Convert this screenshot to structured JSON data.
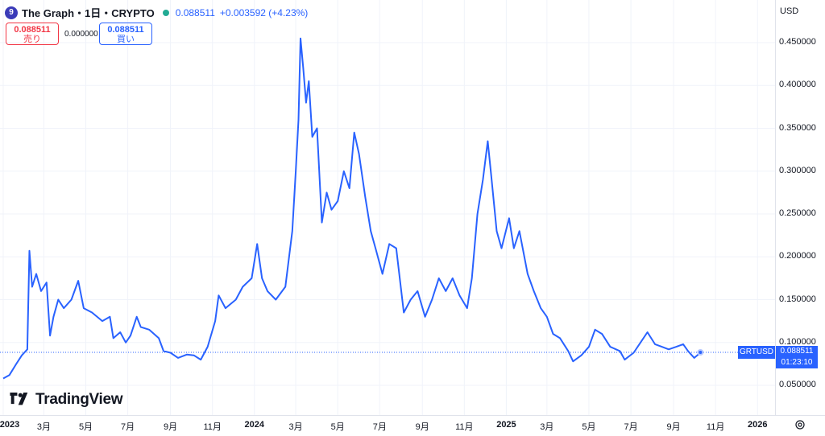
{
  "header": {
    "icon_glyph": "9",
    "title": "The Graph・1日・CRYPTO",
    "last_price": "0.088511",
    "change": "+0.003592 (+4.23%)"
  },
  "trade": {
    "sell_price": "0.088511",
    "sell_label": "売り",
    "spread": "0.000000",
    "buy_price": "0.088511",
    "buy_label": "買い"
  },
  "currency": "USD",
  "logo_text": "TradingView",
  "current": {
    "symbol": "GRTUSD",
    "price": "0.088511",
    "countdown": "01:23:10"
  },
  "colors": {
    "line": "#2962ff",
    "sell": "#f23645",
    "buy": "#2962ff",
    "status_dot": "#22ab94"
  },
  "chart_data": {
    "type": "line",
    "title": "The Graph・1日・CRYPTO",
    "series_name": "GRTUSD",
    "ylim": [
      0.0,
      0.48
    ],
    "y_ticks": [
      "0.050000",
      "0.100000",
      "0.150000",
      "0.200000",
      "0.250000",
      "0.300000",
      "0.350000",
      "0.400000",
      "0.450000"
    ],
    "x_ticks": [
      "2023",
      "3月",
      "5月",
      "7月",
      "9月",
      "11月",
      "2024",
      "3月",
      "5月",
      "7月",
      "9月",
      "11月",
      "2025",
      "3月",
      "5月",
      "7月",
      "9月",
      "11月",
      "2026"
    ],
    "x_tick_years": [
      "2023",
      "2024",
      "2025",
      "2026"
    ],
    "x_range": [
      "2023-01-01",
      "2026-02-10"
    ],
    "grid": true,
    "points": [
      [
        "2023-01-01",
        0.058
      ],
      [
        "2023-01-10",
        0.062
      ],
      [
        "2023-01-20",
        0.075
      ],
      [
        "2023-01-28",
        0.085
      ],
      [
        "2023-02-05",
        0.092
      ],
      [
        "2023-02-08",
        0.207
      ],
      [
        "2023-02-12",
        0.165
      ],
      [
        "2023-02-18",
        0.18
      ],
      [
        "2023-02-25",
        0.16
      ],
      [
        "2023-03-05",
        0.17
      ],
      [
        "2023-03-10",
        0.108
      ],
      [
        "2023-03-15",
        0.13
      ],
      [
        "2023-03-22",
        0.15
      ],
      [
        "2023-03-30",
        0.14
      ],
      [
        "2023-04-10",
        0.15
      ],
      [
        "2023-04-20",
        0.172
      ],
      [
        "2023-04-28",
        0.14
      ],
      [
        "2023-05-10",
        0.135
      ],
      [
        "2023-05-25",
        0.125
      ],
      [
        "2023-06-05",
        0.13
      ],
      [
        "2023-06-10",
        0.105
      ],
      [
        "2023-06-20",
        0.112
      ],
      [
        "2023-06-28",
        0.1
      ],
      [
        "2023-07-05",
        0.108
      ],
      [
        "2023-07-14",
        0.13
      ],
      [
        "2023-07-20",
        0.118
      ],
      [
        "2023-08-01",
        0.115
      ],
      [
        "2023-08-15",
        0.105
      ],
      [
        "2023-08-22",
        0.09
      ],
      [
        "2023-09-01",
        0.088
      ],
      [
        "2023-09-12",
        0.082
      ],
      [
        "2023-09-25",
        0.086
      ],
      [
        "2023-10-05",
        0.085
      ],
      [
        "2023-10-15",
        0.08
      ],
      [
        "2023-10-25",
        0.095
      ],
      [
        "2023-11-05",
        0.125
      ],
      [
        "2023-11-10",
        0.155
      ],
      [
        "2023-11-20",
        0.14
      ],
      [
        "2023-12-05",
        0.15
      ],
      [
        "2023-12-15",
        0.165
      ],
      [
        "2023-12-28",
        0.175
      ],
      [
        "2024-01-05",
        0.215
      ],
      [
        "2024-01-12",
        0.175
      ],
      [
        "2024-01-20",
        0.16
      ],
      [
        "2024-02-01",
        0.15
      ],
      [
        "2024-02-15",
        0.165
      ],
      [
        "2024-02-25",
        0.23
      ],
      [
        "2024-03-01",
        0.3
      ],
      [
        "2024-03-05",
        0.36
      ],
      [
        "2024-03-08",
        0.455
      ],
      [
        "2024-03-12",
        0.42
      ],
      [
        "2024-03-16",
        0.38
      ],
      [
        "2024-03-20",
        0.405
      ],
      [
        "2024-03-25",
        0.34
      ],
      [
        "2024-04-01",
        0.35
      ],
      [
        "2024-04-08",
        0.24
      ],
      [
        "2024-04-15",
        0.275
      ],
      [
        "2024-04-22",
        0.255
      ],
      [
        "2024-05-01",
        0.265
      ],
      [
        "2024-05-10",
        0.3
      ],
      [
        "2024-05-18",
        0.28
      ],
      [
        "2024-05-25",
        0.345
      ],
      [
        "2024-06-01",
        0.32
      ],
      [
        "2024-06-10",
        0.27
      ],
      [
        "2024-06-18",
        0.23
      ],
      [
        "2024-06-25",
        0.21
      ],
      [
        "2024-07-05",
        0.18
      ],
      [
        "2024-07-15",
        0.215
      ],
      [
        "2024-07-25",
        0.21
      ],
      [
        "2024-08-05",
        0.135
      ],
      [
        "2024-08-15",
        0.15
      ],
      [
        "2024-08-25",
        0.16
      ],
      [
        "2024-09-05",
        0.13
      ],
      [
        "2024-09-15",
        0.15
      ],
      [
        "2024-09-25",
        0.175
      ],
      [
        "2024-10-05",
        0.16
      ],
      [
        "2024-10-15",
        0.175
      ],
      [
        "2024-10-25",
        0.155
      ],
      [
        "2024-11-05",
        0.14
      ],
      [
        "2024-11-12",
        0.175
      ],
      [
        "2024-11-20",
        0.25
      ],
      [
        "2024-11-28",
        0.29
      ],
      [
        "2024-12-05",
        0.335
      ],
      [
        "2024-12-10",
        0.295
      ],
      [
        "2024-12-18",
        0.23
      ],
      [
        "2024-12-25",
        0.21
      ],
      [
        "2025-01-05",
        0.245
      ],
      [
        "2025-01-12",
        0.21
      ],
      [
        "2025-01-20",
        0.23
      ],
      [
        "2025-02-01",
        0.18
      ],
      [
        "2025-02-10",
        0.16
      ],
      [
        "2025-02-20",
        0.14
      ],
      [
        "2025-03-01",
        0.13
      ],
      [
        "2025-03-10",
        0.11
      ],
      [
        "2025-03-20",
        0.105
      ],
      [
        "2025-04-01",
        0.09
      ],
      [
        "2025-04-08",
        0.078
      ],
      [
        "2025-04-20",
        0.085
      ],
      [
        "2025-05-01",
        0.095
      ],
      [
        "2025-05-10",
        0.115
      ],
      [
        "2025-05-20",
        0.11
      ],
      [
        "2025-06-01",
        0.095
      ],
      [
        "2025-06-15",
        0.09
      ],
      [
        "2025-06-22",
        0.08
      ],
      [
        "2025-07-05",
        0.088
      ],
      [
        "2025-07-15",
        0.1
      ],
      [
        "2025-07-25",
        0.112
      ],
      [
        "2025-08-05",
        0.098
      ],
      [
        "2025-08-15",
        0.095
      ],
      [
        "2025-08-25",
        0.092
      ],
      [
        "2025-09-05",
        0.095
      ],
      [
        "2025-09-15",
        0.098
      ],
      [
        "2025-09-22",
        0.09
      ],
      [
        "2025-10-01",
        0.082
      ],
      [
        "2025-10-10",
        0.088
      ]
    ],
    "current_price": 0.088511
  }
}
